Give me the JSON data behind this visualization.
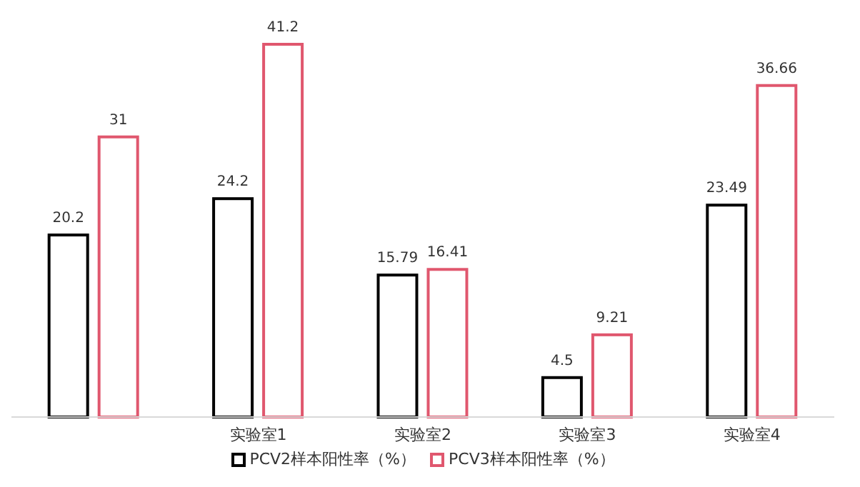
{
  "chart_data": {
    "type": "bar",
    "categories": [
      null,
      "实验室1",
      "实验室2",
      "实验室3",
      "实验室4"
    ],
    "series": [
      {
        "name": "PCV2样本阳性率（%）",
        "color": "#000000",
        "values": [
          20.2,
          24.2,
          15.79,
          4.5,
          23.49
        ]
      },
      {
        "name": "PCV3样本阳性率（%）",
        "color": "#e0576e",
        "values": [
          31,
          41.2,
          16.41,
          9.21,
          36.66
        ]
      }
    ],
    "data_labels": true,
    "grid": false,
    "legend": "bottom"
  }
}
